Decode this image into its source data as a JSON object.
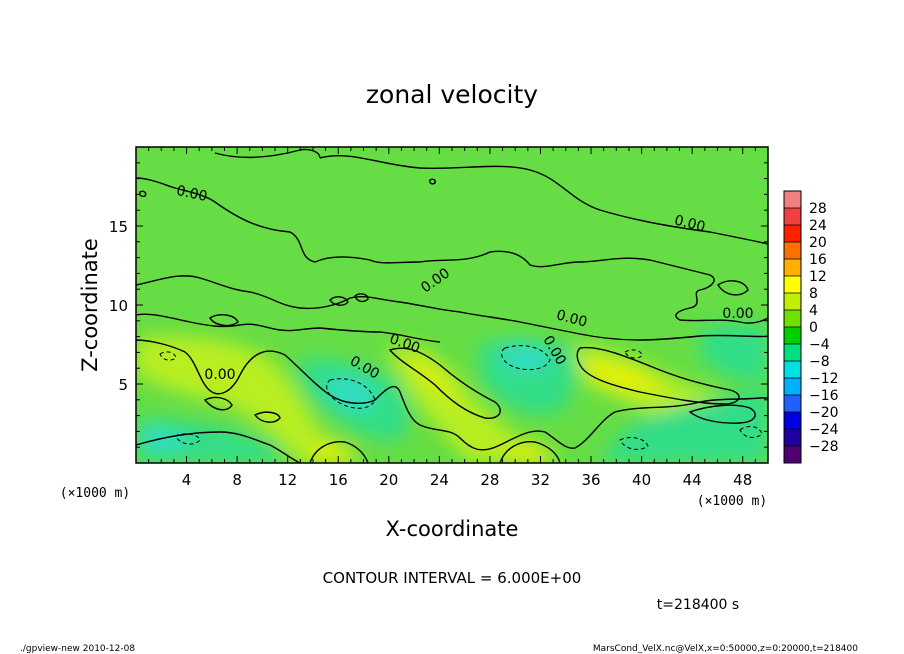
{
  "chart_data": {
    "type": "heatmap",
    "title": "zonal velocity",
    "xlabel": "X-coordinate",
    "ylabel": "Z-coordinate",
    "x_unit": "(×1000 m)",
    "z_unit": "(×1000 m)",
    "xlim": [
      0,
      50
    ],
    "ylim": [
      0,
      20
    ],
    "x_ticks": [
      "4",
      "8",
      "12",
      "16",
      "20",
      "24",
      "28",
      "32",
      "36",
      "40",
      "44",
      "48"
    ],
    "y_ticks": [
      "5",
      "10",
      "15"
    ],
    "contour_interval": "CONTOUR INTERVAL = 6.000E+00",
    "time_label": "t=218400 s",
    "contour_labels": [
      "0.00",
      "0.00",
      "0.00",
      "0.00",
      "0.00",
      "0.00",
      "0.00",
      "0.00",
      "0.00"
    ],
    "colorbar": {
      "levels": [
        "28",
        "24",
        "20",
        "16",
        "12",
        "8",
        "4",
        "0",
        "−4",
        "−8",
        "−12",
        "−16",
        "−20",
        "−24",
        "−28"
      ],
      "colors": [
        "#f08080",
        "#f04040",
        "#ff2000",
        "#ff7000",
        "#ffb000",
        "#ffff00",
        "#c0f000",
        "#70e000",
        "#00d000",
        "#00e080",
        "#00e0e0",
        "#00b0ff",
        "#2060ff",
        "#0000e0",
        "#2000a0",
        "#500070"
      ]
    },
    "field_colors": {
      "background": "#66dd44",
      "positive": "#b8ee22",
      "strong_positive": "#e8f000",
      "negative": "#33dd88",
      "strong_negative": "#33ddcc"
    }
  },
  "footer": {
    "left": "./gpview-new 2010-12-08",
    "right": "MarsCond_VelX.nc@VelX,x=0:50000,z=0:20000,t=218400"
  }
}
